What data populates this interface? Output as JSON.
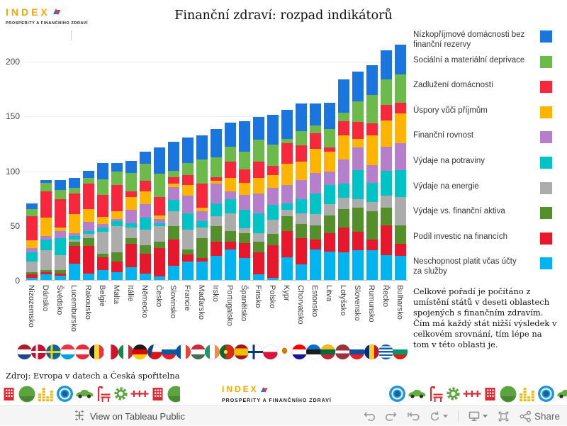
{
  "logo": {
    "title": "INDEX",
    "subtitle": "PROSPERITY A FINANČNÍHO ZDRAVÍ"
  },
  "header": {
    "title": "Finanční zdraví: rozpad indikátorů"
  },
  "note": "Celkové pořadí je počítáno z umístění států v deseti oblastech spojených s finančním zdravím. Čím má každý stát nižší výsledek v celkovém srovnání, tím lépe na tom v této oblasti je.",
  "source": "Zdroj: Evropa v datech a Česká spořitelna",
  "footer": {
    "view_label": "View on Tableau Public",
    "share_label": "Share",
    "tools": [
      "undo",
      "redo",
      "revert",
      "refresh",
      "download",
      "fullscreen",
      "share"
    ]
  },
  "chart_data": {
    "type": "bar",
    "stacked": true,
    "title": "Finanční zdraví: rozpad indikátorů",
    "xlabel": "",
    "ylabel": "",
    "ylim": [
      0,
      220
    ],
    "yticks": [
      0,
      50,
      100,
      150,
      200
    ],
    "grid": "horizontal",
    "legend_position": "right",
    "legend_order": "top-to-bottom is reverse of stack order (stack is bottom-to-top)",
    "categories": [
      "Nizozemsko",
      "Dánsko",
      "Švédsko",
      "Lucembursko",
      "Rakousko",
      "Belgie",
      "Malta",
      "Itálie",
      "Německo",
      "Česko",
      "Slovinsko",
      "Francie",
      "Maďarsko",
      "Irsko",
      "Portugalsko",
      "Španělsko",
      "Finsko",
      "Polsko",
      "Kypr",
      "Chorvatsko",
      "Estonsko",
      "Litva",
      "Lotyšsko",
      "Slovensko",
      "Rumunsko",
      "Řecko",
      "Bulharsko"
    ],
    "series": [
      {
        "name": "Neschopnost platit včas účty za služby",
        "color": "#00B4F0",
        "values": [
          2,
          5,
          4,
          15,
          6,
          9,
          7,
          12,
          6,
          3,
          13,
          17,
          17,
          22,
          28,
          20,
          5,
          2,
          21,
          14,
          28,
          26,
          25,
          27,
          27,
          23,
          22
        ]
      },
      {
        "name": "Podíl investic na financích",
        "color": "#E8172B",
        "values": [
          3,
          2,
          2,
          16,
          25,
          12,
          10,
          21,
          18,
          26,
          24,
          6,
          3,
          13,
          7,
          14,
          20,
          30,
          24,
          24,
          9,
          17,
          23,
          17,
          10,
          27,
          11
        ]
      },
      {
        "name": "Výdaje vs. finanční aktiva",
        "color": "#558F2C",
        "values": [
          2,
          2,
          3,
          4,
          7,
          3,
          8,
          5,
          8,
          6,
          12,
          5,
          18,
          14,
          10,
          9,
          10,
          10,
          13,
          13,
          13,
          16,
          17,
          22,
          26,
          16,
          17
        ]
      },
      {
        "name": "Výdaje na energie",
        "color": "#ACACAC",
        "values": [
          10,
          18,
          14,
          2,
          4,
          20,
          24,
          10,
          14,
          14,
          14,
          18,
          10,
          9,
          16,
          4,
          8,
          13,
          6,
          10,
          10,
          10,
          10,
          8,
          8,
          11,
          26
        ]
      },
      {
        "name": "Výdaje na potraviny",
        "color": "#00C3C6",
        "values": [
          8,
          10,
          15,
          3,
          3,
          4,
          5,
          4,
          11,
          3,
          10,
          15,
          6,
          12,
          13,
          17,
          18,
          14,
          6,
          13,
          19,
          18,
          13,
          26,
          18,
          23,
          24
        ]
      },
      {
        "name": "Finanční rovnost",
        "color": "#B57FCC",
        "values": [
          4,
          3,
          7,
          3,
          8,
          3,
          2,
          12,
          12,
          4,
          12,
          16,
          9,
          18,
          7,
          14,
          18,
          15,
          17,
          17,
          19,
          12,
          22,
          21,
          16,
          22,
          25
        ]
      },
      {
        "name": "Úspory vůči příjmům",
        "color": "#FFB400",
        "values": [
          7,
          17,
          3,
          17,
          12,
          7,
          7,
          12,
          12,
          3,
          3,
          10,
          3,
          3,
          12,
          11,
          14,
          12,
          19,
          17,
          22,
          18,
          22,
          8,
          27,
          24,
          27
        ]
      },
      {
        "name": "Zadlužení domácností",
        "color": "#F8283C",
        "values": [
          22,
          24,
          26,
          19,
          23,
          20,
          24,
          5,
          10,
          17,
          6,
          9,
          22,
          3,
          15,
          12,
          15,
          8,
          19,
          15,
          14,
          4,
          13,
          15,
          11,
          14,
          10
        ]
      },
      {
        "name": "Sociální a materiální deprivace",
        "color": "#6CBA4A",
        "values": [
          7,
          8,
          8,
          5,
          5,
          14,
          12,
          17,
          15,
          21,
          6,
          11,
          22,
          18,
          14,
          16,
          20,
          20,
          4,
          13,
          7,
          17,
          8,
          19,
          26,
          23,
          26
        ]
      },
      {
        "name": "Nízkopříjmové domácnosti bez finanční rezervy",
        "color": "#1A75DF",
        "values": [
          5,
          2,
          9,
          9,
          7,
          15,
          8,
          11,
          11,
          24,
          26,
          23,
          22,
          26,
          22,
          28,
          21,
          27,
          26,
          25,
          20,
          24,
          30,
          27,
          27,
          27,
          27
        ]
      }
    ],
    "totals": [
      70,
      91,
      91,
      93,
      100,
      107,
      107,
      109,
      117,
      121,
      126,
      130,
      132,
      138,
      144,
      145,
      149,
      151,
      155,
      161,
      161,
      162,
      183,
      190,
      196,
      210,
      215
    ]
  },
  "flags": [
    {
      "country": "Nizozemsko",
      "background": "linear-gradient(180deg,#AE1C28 33%,#fff 33%,#fff 66%,#21468B 66%)"
    },
    {
      "country": "Dánsko",
      "background": "linear-gradient(90deg,rgba(0,0,0,0) 30%,#fff 30%,#fff 46%,rgba(0,0,0,0) 46%),linear-gradient(180deg,rgba(0,0,0,0) 42%,#fff 42%,#fff 58%,rgba(0,0,0,0) 58%),linear-gradient(#C8102E,#C8102E)"
    },
    {
      "country": "Švédsko",
      "background": "linear-gradient(90deg,rgba(0,0,0,0) 30%,#FECC02 30%,#FECC02 46%,rgba(0,0,0,0) 46%),linear-gradient(180deg,rgba(0,0,0,0) 42%,#FECC02 42%,#FECC02 58%,rgba(0,0,0,0) 58%),linear-gradient(#006AA7,#006AA7)"
    },
    {
      "country": "Lucembursko",
      "background": "linear-gradient(180deg,#EF3340 33%,#fff 33%,#fff 66%,#00A2E1 66%)"
    },
    {
      "country": "Rakousko",
      "background": "linear-gradient(180deg,#ED2939 33%,#fff 33%,#fff 66%,#ED2939 66%)"
    },
    {
      "country": "Belgie",
      "background": "linear-gradient(90deg,#1b1b1b 33%,#FDDA24 33%,#FDDA24 66%,#EF3340 66%)"
    },
    {
      "country": "Malta",
      "background": "linear-gradient(90deg,#fff 50%,#CF142B 50%)"
    },
    {
      "country": "Itálie",
      "background": "linear-gradient(90deg,#009246 33%,#fff 33%,#fff 66%,#CE2B37 66%)"
    },
    {
      "country": "Německo",
      "background": "linear-gradient(180deg,#1b1b1b 33%,#DD0000 33%,#DD0000 66%,#FFCE00 66%)"
    },
    {
      "country": "Česko",
      "background": "linear-gradient(105deg,#11457E 34%,rgba(0,0,0,0) 34%),linear-gradient(180deg,#fff 50%,#D7141A 50%)"
    },
    {
      "country": "Slovinsko",
      "background": "linear-gradient(180deg,#fff 33%,#005DA4 33%,#005DA4 66%,#ED1C24 66%)"
    },
    {
      "country": "Francie",
      "background": "linear-gradient(90deg,#0055A4 33%,#fff 33%,#fff 66%,#EF4135 66%)"
    },
    {
      "country": "Maďarsko",
      "background": "linear-gradient(180deg,#CE2939 33%,#fff 33%,#fff 66%,#477050 66%)"
    },
    {
      "country": "Irsko",
      "background": "linear-gradient(90deg,#169B62 33%,#fff 33%,#fff 66%,#FF883E 66%)"
    },
    {
      "country": "Portugalsko",
      "background": "radial-gradient(circle at 40% 50%,#FFE900 15%,rgba(0,0,0,0) 16%),linear-gradient(90deg,#046A38 40%,#DA291C 40%)"
    },
    {
      "country": "Španělsko",
      "background": "linear-gradient(180deg,#AA151B 27%,#F1BF00 27%,#F1BF00 73%,#AA151B 73%)"
    },
    {
      "country": "Finsko",
      "background": "linear-gradient(90deg,rgba(0,0,0,0) 30%,#003580 30%,#003580 46%,rgba(0,0,0,0) 46%),linear-gradient(180deg,rgba(0,0,0,0) 42%,#003580 42%,#003580 58%,rgba(0,0,0,0) 58%),linear-gradient(#fff,#fff)"
    },
    {
      "country": "Polsko",
      "background": "linear-gradient(180deg,#fff 50%,#DC143C 50%)"
    },
    {
      "country": "Kypr",
      "background": "radial-gradient(ellipse at 50% 42%,#D57800 24%,rgba(0,0,0,0) 25%),linear-gradient(#fff,#fff)"
    },
    {
      "country": "Chorvatsko",
      "background": "linear-gradient(180deg,#FF0000 33%,#fff 33%,#fff 66%,#171796 66%)"
    },
    {
      "country": "Estonsko",
      "background": "linear-gradient(180deg,#0072CE 33%,#1b1b1b 33%,#1b1b1b 66%,#fff 66%)"
    },
    {
      "country": "Litva",
      "background": "linear-gradient(180deg,#FDB913 33%,#006A44 33%,#006A44 66%,#C1272D 66%)"
    },
    {
      "country": "Lotyšsko",
      "background": "linear-gradient(180deg,#9E3039 40%,#fff 40%,#fff 60%,#9E3039 60%)"
    },
    {
      "country": "Slovensko",
      "background": "linear-gradient(180deg,#fff 33%,#0B4EA2 33%,#0B4EA2 66%,#EE1C25 66%)"
    },
    {
      "country": "Rumunsko",
      "background": "linear-gradient(90deg,#002B7F 33%,#FCD116 33%,#FCD116 66%,#CE1126 66%)"
    },
    {
      "country": "Řecko",
      "background": "repeating-linear-gradient(180deg,#0D5EAF 0,#0D5EAF 11%,#fff 11%,#fff 22%)"
    },
    {
      "country": "Bulharsko",
      "background": "linear-gradient(180deg,#fff 33%,#00966E 33%,#00966E 66%,#D62612 66%)"
    }
  ],
  "band": {
    "left_icons": [
      {
        "name": "building-icon",
        "color": "#DD2B33"
      },
      {
        "name": "tree-icon",
        "color": "#5BA53F"
      },
      {
        "name": "city-icon",
        "color": "#EFB810"
      },
      {
        "name": "globe-icon",
        "color": "#2196D6"
      },
      {
        "name": "car-icon",
        "color": "#63AD3F"
      },
      {
        "name": "bench-icon",
        "color": "#DD2B33"
      },
      {
        "name": "gear-icon",
        "color": "#5BA53F"
      },
      {
        "name": "coupling-icon",
        "color": "#DD2B33"
      },
      {
        "name": "building-icon",
        "color": "#DD2B33"
      },
      {
        "name": "tree-icon",
        "color": "#5BA53F"
      }
    ],
    "right_icons": [
      {
        "name": "globe-icon",
        "color": "#2196D6"
      },
      {
        "name": "car-icon",
        "color": "#63AD3F"
      },
      {
        "name": "bench-icon",
        "color": "#DD2B33"
      },
      {
        "name": "gear-icon",
        "color": "#5BA53F"
      },
      {
        "name": "coupling-icon",
        "color": "#DD2B33"
      },
      {
        "name": "building-icon",
        "color": "#DD2B33"
      },
      {
        "name": "tree-icon",
        "color": "#5BA53F"
      },
      {
        "name": "city-icon",
        "color": "#EFB810"
      },
      {
        "name": "globe-icon",
        "color": "#2196D6"
      },
      {
        "name": "car-icon",
        "color": "#63AD3F"
      }
    ]
  }
}
